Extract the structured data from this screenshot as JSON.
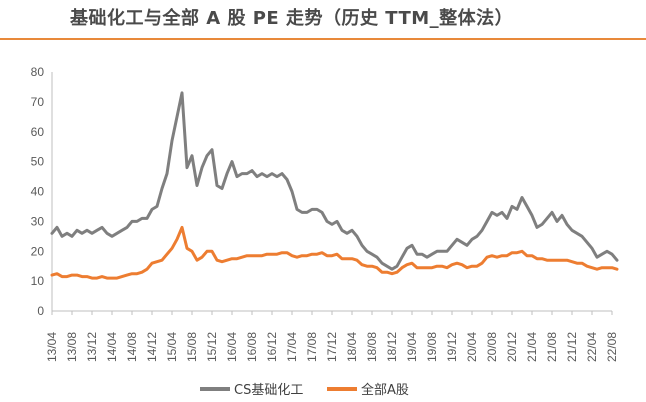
{
  "title": "基础化工与全部 A 股 PE 走势（历史 TTM_整体法）",
  "colors": {
    "accent": "#e8893a",
    "series_gray": "#7f7f7f",
    "series_orange": "#ed7d31",
    "axis": "#bfbfbf"
  },
  "chart_data": {
    "type": "line",
    "title": "基础化工与全部 A 股 PE 走势（历史 TTM_整体法）",
    "xlabel": "",
    "ylabel": "",
    "ylim": [
      0,
      80
    ],
    "yticks": [
      0,
      10,
      20,
      30,
      40,
      50,
      60,
      70,
      80
    ],
    "xlim": [
      "13/04",
      "22/08"
    ],
    "xticks": [
      "13/04",
      "13/08",
      "13/12",
      "14/04",
      "14/08",
      "14/12",
      "15/04",
      "15/08",
      "15/12",
      "16/04",
      "16/08",
      "16/12",
      "17/04",
      "17/08",
      "17/12",
      "18/04",
      "18/08",
      "18/12",
      "19/04",
      "19/08",
      "19/12",
      "20/04",
      "20/08",
      "20/12",
      "21/04",
      "21/08",
      "21/12",
      "22/04",
      "22/08"
    ],
    "grid": false,
    "legend": "bottom",
    "series": [
      {
        "name": "CS基础化工",
        "color": "#7f7f7f",
        "points": [
          [
            "13/04",
            26
          ],
          [
            "13/05",
            28
          ],
          [
            "13/06",
            25
          ],
          [
            "13/07",
            26
          ],
          [
            "13/08",
            25
          ],
          [
            "13/09",
            27
          ],
          [
            "13/10",
            26
          ],
          [
            "13/11",
            27
          ],
          [
            "13/12",
            26
          ],
          [
            "14/01",
            27
          ],
          [
            "14/02",
            28
          ],
          [
            "14/03",
            26
          ],
          [
            "14/04",
            25
          ],
          [
            "14/05",
            26
          ],
          [
            "14/06",
            27
          ],
          [
            "14/07",
            28
          ],
          [
            "14/08",
            30
          ],
          [
            "14/09",
            30
          ],
          [
            "14/10",
            31
          ],
          [
            "14/11",
            31
          ],
          [
            "14/12",
            34
          ],
          [
            "15/01",
            35
          ],
          [
            "15/02",
            41
          ],
          [
            "15/03",
            46
          ],
          [
            "15/04",
            57
          ],
          [
            "15/05",
            65
          ],
          [
            "15/06",
            73
          ],
          [
            "15/07",
            48
          ],
          [
            "15/08",
            52
          ],
          [
            "15/09",
            42
          ],
          [
            "15/10",
            48
          ],
          [
            "15/11",
            52
          ],
          [
            "15/12",
            54
          ],
          [
            "16/01",
            42
          ],
          [
            "16/02",
            41
          ],
          [
            "16/03",
            46
          ],
          [
            "16/04",
            50
          ],
          [
            "16/05",
            45
          ],
          [
            "16/06",
            46
          ],
          [
            "16/07",
            46
          ],
          [
            "16/08",
            47
          ],
          [
            "16/09",
            45
          ],
          [
            "16/10",
            46
          ],
          [
            "16/11",
            45
          ],
          [
            "16/12",
            46
          ],
          [
            "17/01",
            45
          ],
          [
            "17/02",
            46
          ],
          [
            "17/03",
            44
          ],
          [
            "17/04",
            40
          ],
          [
            "17/05",
            34
          ],
          [
            "17/06",
            33
          ],
          [
            "17/07",
            33
          ],
          [
            "17/08",
            34
          ],
          [
            "17/09",
            34
          ],
          [
            "17/10",
            33
          ],
          [
            "17/11",
            30
          ],
          [
            "17/12",
            29
          ],
          [
            "18/01",
            30
          ],
          [
            "18/02",
            27
          ],
          [
            "18/03",
            26
          ],
          [
            "18/04",
            27
          ],
          [
            "18/05",
            25
          ],
          [
            "18/06",
            22
          ],
          [
            "18/07",
            20
          ],
          [
            "18/08",
            19
          ],
          [
            "18/09",
            18
          ],
          [
            "18/10",
            16
          ],
          [
            "18/11",
            15
          ],
          [
            "18/12",
            14
          ],
          [
            "19/01",
            15
          ],
          [
            "19/02",
            18
          ],
          [
            "19/03",
            21
          ],
          [
            "19/04",
            22
          ],
          [
            "19/05",
            19
          ],
          [
            "19/06",
            19
          ],
          [
            "19/07",
            18
          ],
          [
            "19/08",
            19
          ],
          [
            "19/09",
            20
          ],
          [
            "19/10",
            20
          ],
          [
            "19/11",
            20
          ],
          [
            "19/12",
            22
          ],
          [
            "20/01",
            24
          ],
          [
            "20/02",
            23
          ],
          [
            "20/03",
            22
          ],
          [
            "20/04",
            24
          ],
          [
            "20/05",
            25
          ],
          [
            "20/06",
            27
          ],
          [
            "20/07",
            30
          ],
          [
            "20/08",
            33
          ],
          [
            "20/09",
            32
          ],
          [
            "20/10",
            33
          ],
          [
            "20/11",
            31
          ],
          [
            "20/12",
            35
          ],
          [
            "21/01",
            34
          ],
          [
            "21/02",
            38
          ],
          [
            "21/03",
            35
          ],
          [
            "21/04",
            32
          ],
          [
            "21/05",
            28
          ],
          [
            "21/06",
            29
          ],
          [
            "21/07",
            31
          ],
          [
            "21/08",
            33
          ],
          [
            "21/09",
            30
          ],
          [
            "21/10",
            32
          ],
          [
            "21/11",
            29
          ],
          [
            "21/12",
            27
          ],
          [
            "22/01",
            26
          ],
          [
            "22/02",
            25
          ],
          [
            "22/03",
            23
          ],
          [
            "22/04",
            21
          ],
          [
            "22/05",
            18
          ],
          [
            "22/06",
            19
          ],
          [
            "22/07",
            20
          ],
          [
            "22/08",
            19
          ],
          [
            "22/09",
            17
          ]
        ]
      },
      {
        "name": "全部A股",
        "color": "#ed7d31",
        "points": [
          [
            "13/04",
            12
          ],
          [
            "13/05",
            12.5
          ],
          [
            "13/06",
            11.5
          ],
          [
            "13/07",
            11.5
          ],
          [
            "13/08",
            12
          ],
          [
            "13/09",
            12
          ],
          [
            "13/10",
            11.5
          ],
          [
            "13/11",
            11.5
          ],
          [
            "13/12",
            11
          ],
          [
            "14/01",
            11
          ],
          [
            "14/02",
            11.5
          ],
          [
            "14/03",
            11
          ],
          [
            "14/04",
            11
          ],
          [
            "14/05",
            11
          ],
          [
            "14/06",
            11.5
          ],
          [
            "14/07",
            12
          ],
          [
            "14/08",
            12.5
          ],
          [
            "14/09",
            12.5
          ],
          [
            "14/10",
            13
          ],
          [
            "14/11",
            14
          ],
          [
            "14/12",
            16
          ],
          [
            "15/01",
            16.5
          ],
          [
            "15/02",
            17
          ],
          [
            "15/03",
            19
          ],
          [
            "15/04",
            21
          ],
          [
            "15/05",
            24
          ],
          [
            "15/06",
            28
          ],
          [
            "15/07",
            21
          ],
          [
            "15/08",
            20
          ],
          [
            "15/09",
            17
          ],
          [
            "15/10",
            18
          ],
          [
            "15/11",
            20
          ],
          [
            "15/12",
            20
          ],
          [
            "16/01",
            17
          ],
          [
            "16/02",
            16.5
          ],
          [
            "16/03",
            17
          ],
          [
            "16/04",
            17.5
          ],
          [
            "16/05",
            17.5
          ],
          [
            "16/06",
            18
          ],
          [
            "16/07",
            18.5
          ],
          [
            "16/08",
            18.5
          ],
          [
            "16/09",
            18.5
          ],
          [
            "16/10",
            18.5
          ],
          [
            "16/11",
            19
          ],
          [
            "16/12",
            19
          ],
          [
            "17/01",
            19
          ],
          [
            "17/02",
            19.5
          ],
          [
            "17/03",
            19.5
          ],
          [
            "17/04",
            18.5
          ],
          [
            "17/05",
            18
          ],
          [
            "17/06",
            18.5
          ],
          [
            "17/07",
            18.5
          ],
          [
            "17/08",
            19
          ],
          [
            "17/09",
            19
          ],
          [
            "17/10",
            19.5
          ],
          [
            "17/11",
            18.5
          ],
          [
            "17/12",
            18.5
          ],
          [
            "18/01",
            19
          ],
          [
            "18/02",
            17.5
          ],
          [
            "18/03",
            17.5
          ],
          [
            "18/04",
            17.5
          ],
          [
            "18/05",
            17
          ],
          [
            "18/06",
            15.5
          ],
          [
            "18/07",
            15
          ],
          [
            "18/08",
            15
          ],
          [
            "18/09",
            14.5
          ],
          [
            "18/10",
            13
          ],
          [
            "18/11",
            13
          ],
          [
            "18/12",
            12.5
          ],
          [
            "19/01",
            13
          ],
          [
            "19/02",
            14.5
          ],
          [
            "19/03",
            15.5
          ],
          [
            "19/04",
            16
          ],
          [
            "19/05",
            14.5
          ],
          [
            "19/06",
            14.5
          ],
          [
            "19/07",
            14.5
          ],
          [
            "19/08",
            14.5
          ],
          [
            "19/09",
            15
          ],
          [
            "19/10",
            15
          ],
          [
            "19/11",
            14.5
          ],
          [
            "19/12",
            15.5
          ],
          [
            "20/01",
            16
          ],
          [
            "20/02",
            15.5
          ],
          [
            "20/03",
            14.5
          ],
          [
            "20/04",
            15
          ],
          [
            "20/05",
            15
          ],
          [
            "20/06",
            16
          ],
          [
            "20/07",
            18
          ],
          [
            "20/08",
            18.5
          ],
          [
            "20/09",
            18
          ],
          [
            "20/10",
            18.5
          ],
          [
            "20/11",
            18.5
          ],
          [
            "20/12",
            19.5
          ],
          [
            "21/01",
            19.5
          ],
          [
            "21/02",
            20
          ],
          [
            "21/03",
            18.5
          ],
          [
            "21/04",
            18.5
          ],
          [
            "21/05",
            17.5
          ],
          [
            "21/06",
            17.5
          ],
          [
            "21/07",
            17
          ],
          [
            "21/08",
            17
          ],
          [
            "21/09",
            17
          ],
          [
            "21/10",
            17
          ],
          [
            "21/11",
            17
          ],
          [
            "21/12",
            16.5
          ],
          [
            "22/01",
            16
          ],
          [
            "22/02",
            16
          ],
          [
            "22/03",
            15
          ],
          [
            "22/04",
            14.5
          ],
          [
            "22/05",
            14
          ],
          [
            "22/06",
            14.5
          ],
          [
            "22/07",
            14.5
          ],
          [
            "22/08",
            14.5
          ],
          [
            "22/09",
            14
          ]
        ]
      }
    ]
  }
}
